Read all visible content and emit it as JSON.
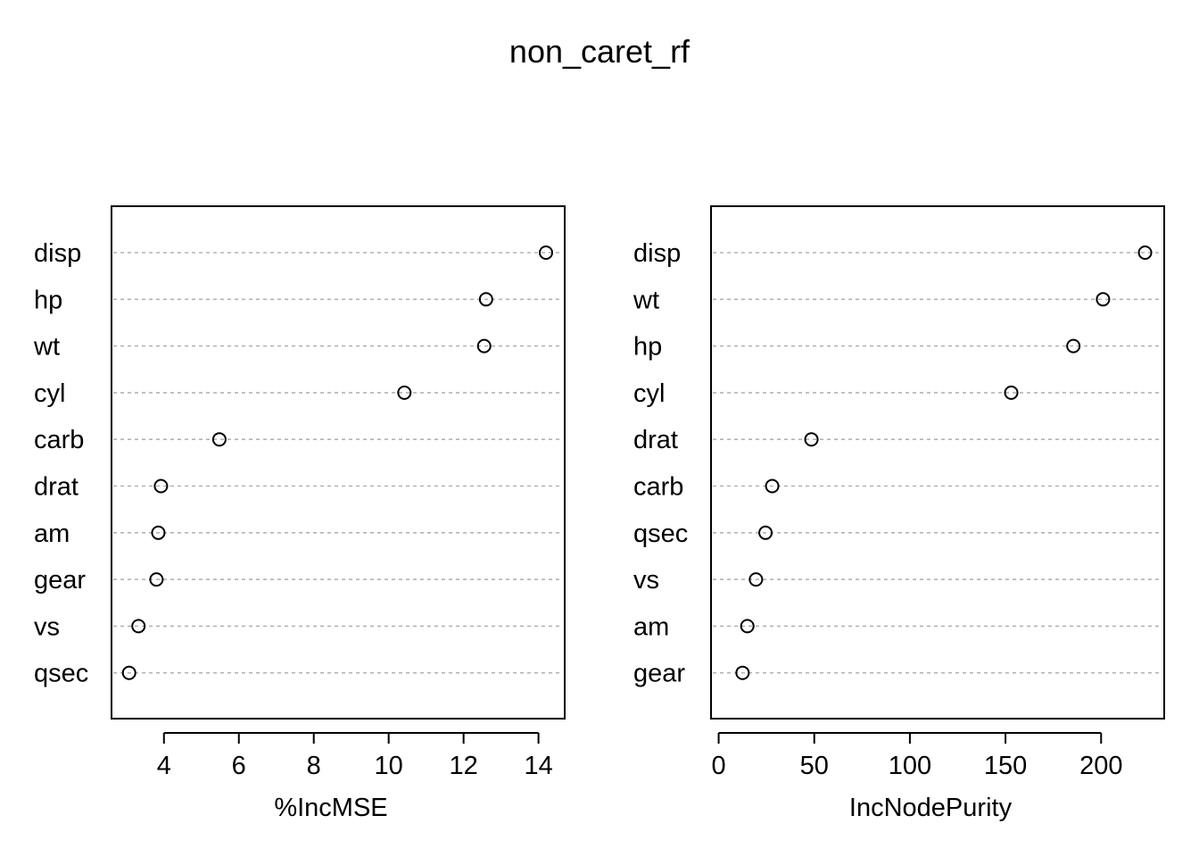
{
  "title": "non_caret_rf",
  "chart_data": [
    {
      "type": "scatter",
      "style": "dotchart",
      "xlabel": "%IncMSE",
      "ylabel": "",
      "xlim": [
        2.6,
        14.7
      ],
      "xticks": [
        4,
        6,
        8,
        10,
        12,
        14
      ],
      "grid": "horizontal dashed guides",
      "categories": [
        "disp",
        "hp",
        "wt",
        "cyl",
        "carb",
        "drat",
        "am",
        "gear",
        "vs",
        "qsec"
      ],
      "values": [
        14.2,
        12.6,
        12.55,
        10.42,
        5.48,
        3.92,
        3.85,
        3.8,
        3.32,
        3.07
      ]
    },
    {
      "type": "scatter",
      "style": "dotchart",
      "xlabel": "IncNodePurity",
      "ylabel": "",
      "xlim": [
        -4,
        233
      ],
      "xticks": [
        0,
        50,
        100,
        150,
        200
      ],
      "grid": "horizontal dashed guides",
      "categories": [
        "disp",
        "wt",
        "hp",
        "cyl",
        "drat",
        "carb",
        "qsec",
        "vs",
        "am",
        "gear"
      ],
      "values": [
        223,
        201,
        185.5,
        153,
        48.5,
        28,
        24.5,
        19.5,
        15,
        12.5
      ]
    }
  ]
}
